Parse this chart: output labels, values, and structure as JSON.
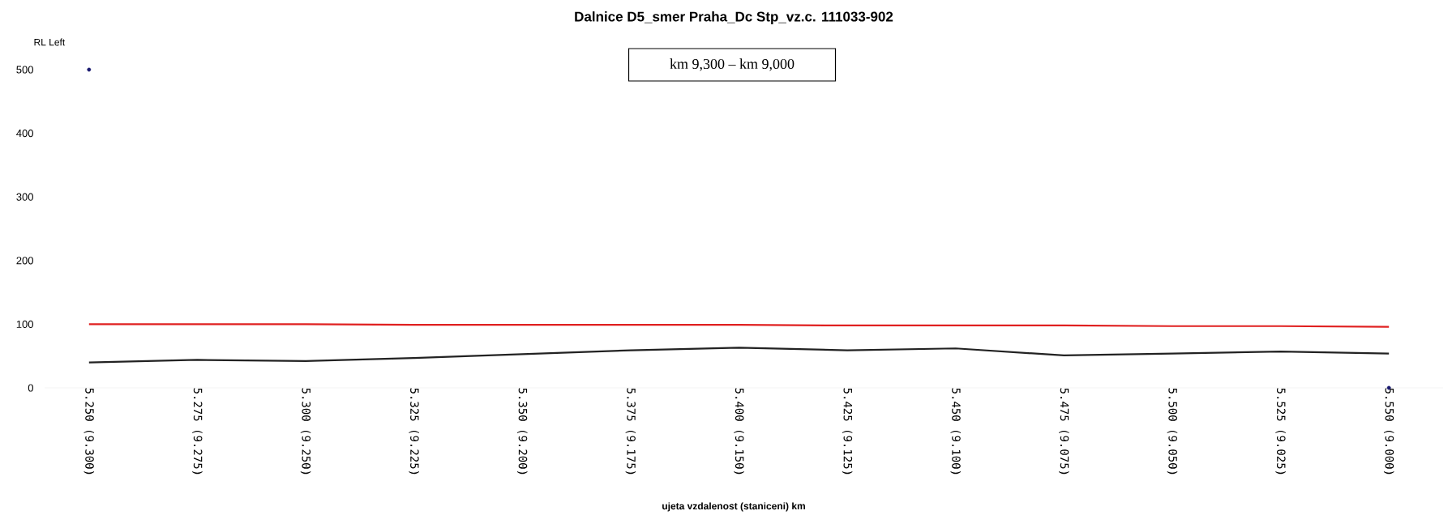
{
  "chart_data": {
    "type": "line",
    "title": "Dalnice D5_smer Praha_Dc Stp_vz.c. 111033-902",
    "ylabel": "RL Left",
    "xlabel": "ujeta vzdalenost (staniceni) km",
    "annotations": [
      "km 9,300 – km 9,000"
    ],
    "categories": [
      "5.250 (9.300)",
      "5.275 (9.275)",
      "5.300 (9.250)",
      "5.325 (9.225)",
      "5.350 (9.200)",
      "5.375 (9.175)",
      "5.400 (9.150)",
      "5.425 (9.125)",
      "5.450 (9.100)",
      "5.475 (9.075)",
      "5.500 (9.050)",
      "5.525 (9.025)",
      "5.550 (9.000)"
    ],
    "series": [
      {
        "color": "#e02020",
        "values": [
          100,
          100,
          100,
          99,
          99,
          99,
          99,
          98,
          98,
          98,
          97,
          97,
          96
        ]
      },
      {
        "color": "#222222",
        "values": [
          40,
          44,
          42,
          47,
          53,
          59,
          63,
          59,
          62,
          51,
          54,
          57,
          54
        ]
      },
      {
        "type": "scatter",
        "marker": "circle",
        "color": "#1a1a70",
        "values": [
          500,
          null,
          null,
          null,
          null,
          null,
          null,
          null,
          null,
          null,
          null,
          null,
          0
        ]
      }
    ],
    "ylim": [
      0,
      500
    ],
    "yticks": [
      0,
      100,
      200,
      300,
      400,
      500
    ],
    "grid": false
  }
}
